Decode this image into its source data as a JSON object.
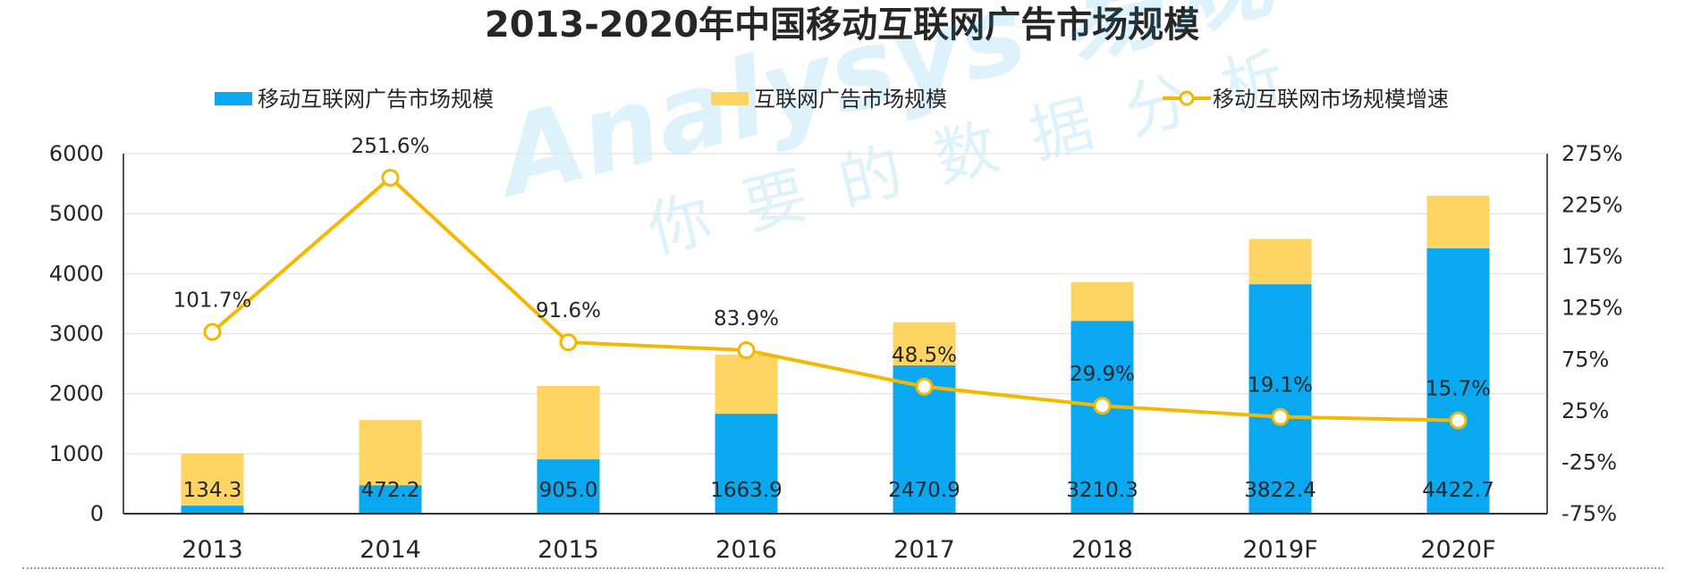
{
  "title": "2013-2020年中国移动互联网广告市场规模",
  "colors": {
    "mobile": "#0aa8f0",
    "internet": "#fed462",
    "growth": "#f5b800",
    "grid": "#e6e6e6",
    "axis": "#333333"
  },
  "legend": {
    "mobile": "移动互联网广告市场规模",
    "internet": "互联网广告市场规模",
    "growth": "移动互联网市场规模增速"
  },
  "watermark": {
    "brand": "Analysys 易观",
    "slogan": "你要的数据分析"
  },
  "chart_data": {
    "type": "bar",
    "categories": [
      "2013",
      "2014",
      "2015",
      "2016",
      "2017",
      "2018",
      "2019F",
      "2020F"
    ],
    "series": [
      {
        "name": "移动互联网广告市场规模",
        "type": "bar",
        "axis": "left",
        "values": [
          134.3,
          472.2,
          905.0,
          1663.9,
          2470.9,
          3210.3,
          3822.4,
          4422.7
        ],
        "labels": [
          "134.3",
          "472.2",
          "905.0",
          "1663.9",
          "2470.9",
          "3210.3",
          "3822.4",
          "4422.7"
        ]
      },
      {
        "name": "互联网广告市场规模",
        "type": "bar",
        "axis": "left",
        "values": [
          1000,
          1560,
          2130,
          2650,
          3190,
          3860,
          4580,
          5300
        ]
      },
      {
        "name": "移动互联网市场规模增速",
        "type": "line",
        "axis": "right",
        "unit": "%",
        "values": [
          101.7,
          251.6,
          91.6,
          83.9,
          48.5,
          29.9,
          19.1,
          15.7
        ],
        "labels": [
          "101.7%",
          "251.6%",
          "91.6%",
          "83.9%",
          "48.5%",
          "29.9%",
          "19.1%",
          "15.7%"
        ]
      }
    ],
    "ylim_left": [
      0,
      6000
    ],
    "yticks_left": [
      "0",
      "1000",
      "2000",
      "3000",
      "4000",
      "5000",
      "6000"
    ],
    "ylim_right": [
      -75,
      275
    ],
    "yticks_right": [
      "-75%",
      "-25%",
      "25%",
      "75%",
      "125%",
      "175%",
      "225%",
      "275%"
    ],
    "grid": true,
    "legend_position": "top"
  }
}
